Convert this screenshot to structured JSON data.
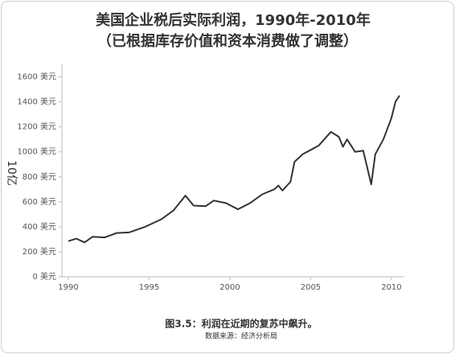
{
  "chart_data": {
    "type": "line",
    "title": "美国企业税后实际利润，1990年-2010年",
    "subtitle": "（已根据库存价值和资本消费做了调整）",
    "ylabel": "10亿",
    "caption": "图3.5：利润在近期的复苏中飙升。",
    "source": "数据来源：经济分析局",
    "color": "#333333",
    "x": [
      1990,
      1990.5,
      1991,
      1991.5,
      1992.25,
      1993,
      1993.75,
      1994.75,
      1995.75,
      1996.5,
      1997.25,
      1997.75,
      1998.5,
      1999,
      1999.75,
      2000.5,
      2001.25,
      2002,
      2002.75,
      2003,
      2003.25,
      2003.75,
      2004,
      2004.5,
      2005.5,
      2006.25,
      2006.75,
      2007,
      2007.25,
      2007.75,
      2008.25,
      2008.75,
      2009,
      2009.5,
      2010,
      2010.25,
      2010.5
    ],
    "values": [
      285,
      305,
      275,
      320,
      315,
      350,
      355,
      400,
      460,
      530,
      650,
      570,
      565,
      610,
      590,
      540,
      590,
      660,
      700,
      730,
      690,
      760,
      920,
      980,
      1050,
      1160,
      1120,
      1040,
      1100,
      1000,
      1010,
      740,
      980,
      1100,
      1270,
      1400,
      1450
    ],
    "xlim": [
      1989.6,
      2010.8
    ],
    "ylim": [
      0,
      1700
    ],
    "xticks": [
      1990,
      1995,
      2000,
      2005,
      2010
    ],
    "yticks": [
      {
        "value": 0,
        "label": "0 美元"
      },
      {
        "value": 200,
        "label": "200 美元"
      },
      {
        "value": 400,
        "label": "400 美元"
      },
      {
        "value": 600,
        "label": "600 美元"
      },
      {
        "value": 800,
        "label": "800 美元"
      },
      {
        "value": 1000,
        "label": "1000 美元"
      },
      {
        "value": 1200,
        "label": "1200 美元"
      },
      {
        "value": 1400,
        "label": "1400 美元"
      },
      {
        "value": 1600,
        "label": "1600 美元"
      }
    ],
    "grid": false
  }
}
